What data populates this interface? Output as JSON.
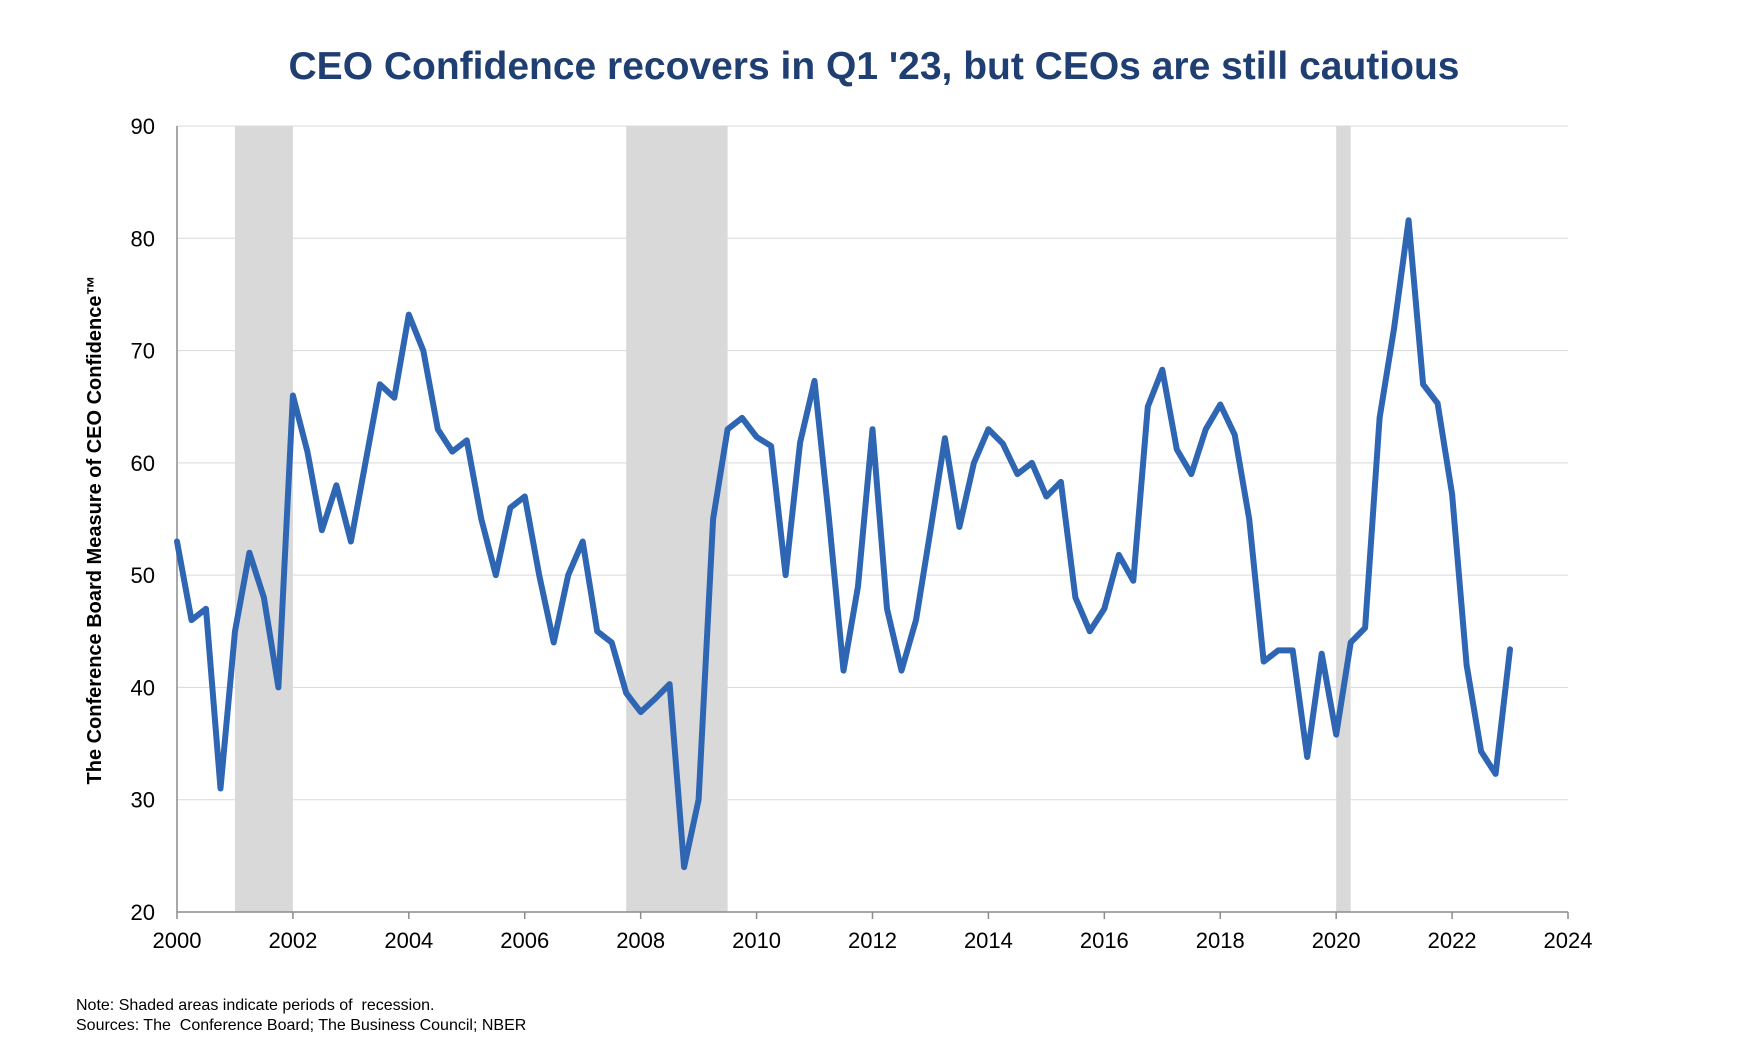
{
  "chart_data": {
    "type": "line",
    "title": "CEO Confidence recovers in Q1 '23, but CEOs are still cautious",
    "xlabel": "",
    "ylabel": "The Conference Board Measure of CEO Confidence™",
    "xlim": [
      2000,
      2024
    ],
    "ylim": [
      20,
      90
    ],
    "x_ticks": [
      "2000",
      "2002",
      "2004",
      "2006",
      "2008",
      "2010",
      "2012",
      "2014",
      "2016",
      "2018",
      "2020",
      "2022",
      "2024"
    ],
    "y_ticks": [
      "20",
      "30",
      "40",
      "50",
      "60",
      "70",
      "80",
      "90"
    ],
    "grid": true,
    "line_color": "#2e66b3",
    "recession_color": "#d9d9d9",
    "recessions": [
      {
        "start": 2001.0,
        "end": 2002.0
      },
      {
        "start": 2007.75,
        "end": 2009.5
      },
      {
        "start": 2020.0,
        "end": 2020.25
      }
    ],
    "series": [
      {
        "name": "CEO Confidence",
        "x": [
          2000.0,
          2000.25,
          2000.5,
          2000.75,
          2001.0,
          2001.25,
          2001.5,
          2001.75,
          2002.0,
          2002.25,
          2002.5,
          2002.75,
          2003.0,
          2003.25,
          2003.5,
          2003.75,
          2004.0,
          2004.25,
          2004.5,
          2004.75,
          2005.0,
          2005.25,
          2005.5,
          2005.75,
          2006.0,
          2006.25,
          2006.5,
          2006.75,
          2007.0,
          2007.25,
          2007.5,
          2007.75,
          2008.0,
          2008.25,
          2008.5,
          2008.75,
          2009.0,
          2009.25,
          2009.5,
          2009.75,
          2010.0,
          2010.25,
          2010.5,
          2010.75,
          2011.0,
          2011.25,
          2011.5,
          2011.75,
          2012.0,
          2012.25,
          2012.5,
          2012.75,
          2013.0,
          2013.25,
          2013.5,
          2013.75,
          2014.0,
          2014.25,
          2014.5,
          2014.75,
          2015.0,
          2015.25,
          2015.5,
          2015.75,
          2016.0,
          2016.25,
          2016.5,
          2016.75,
          2017.0,
          2017.25,
          2017.5,
          2017.75,
          2018.0,
          2018.25,
          2018.5,
          2018.75,
          2019.0,
          2019.25,
          2019.5,
          2019.75,
          2020.0,
          2020.25,
          2020.5,
          2020.75,
          2021.0,
          2021.25,
          2021.5,
          2021.75,
          2022.0,
          2022.25,
          2022.5,
          2022.75,
          2023.0
        ],
        "values": [
          53,
          46,
          47,
          31,
          45,
          52,
          48,
          40,
          66,
          61,
          54,
          58,
          53,
          60,
          67,
          65.8,
          73.2,
          70,
          63,
          61,
          62,
          55,
          50,
          56,
          57,
          50,
          44,
          50,
          53,
          45,
          44,
          39.5,
          37.8,
          39,
          40.3,
          24,
          30,
          55,
          63,
          64,
          62.3,
          61.5,
          50,
          61.8,
          67.3,
          55,
          41.5,
          49,
          63,
          47,
          41.5,
          46,
          54,
          62.2,
          54.3,
          60,
          63,
          61.7,
          59,
          60,
          57,
          58.3,
          48,
          45,
          47,
          51.8,
          49.5,
          65,
          68.3,
          61.2,
          59,
          63,
          65.2,
          62.5,
          55,
          42.3,
          43.3,
          43.3,
          33.8,
          43,
          35.8,
          44,
          45.3,
          64,
          72,
          81.6,
          67,
          65.3,
          57.2,
          42,
          34.3,
          32.3,
          43.4
        ]
      }
    ]
  },
  "notes": {
    "note": "Note: Shaded areas indicate periods of  recession.",
    "sources": "Sources: The  Conference Board; The Business Council; NBER"
  }
}
